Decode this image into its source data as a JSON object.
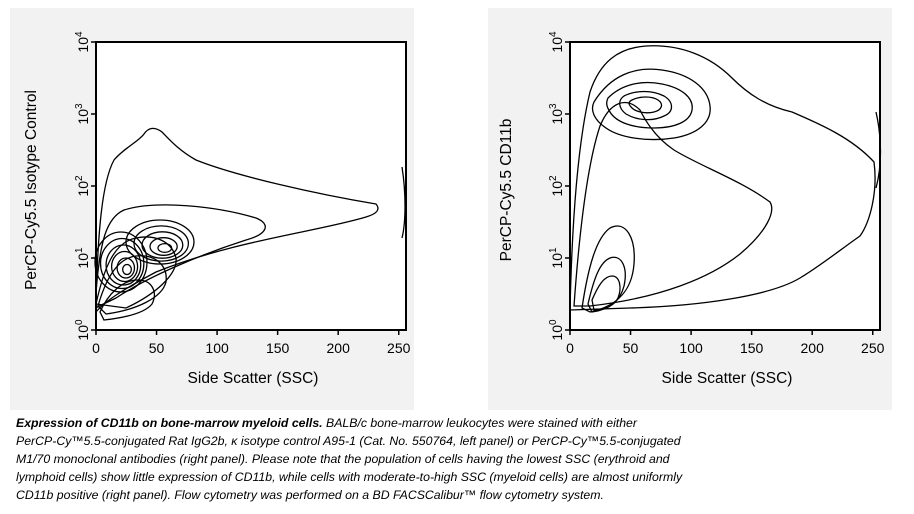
{
  "chart_data": [
    {
      "type": "contour",
      "xlabel": "Side Scatter (SSC)",
      "ylabel": "PerCP-Cy5.5 Isotype Control",
      "xlim": [
        0,
        256
      ],
      "ylim_log10": [
        0,
        4
      ],
      "x_ticks": [
        "0",
        "50",
        "100",
        "150",
        "200",
        "250"
      ],
      "y_ticks": [
        {
          "base": "10",
          "exp": "0"
        },
        {
          "base": "10",
          "exp": "1"
        },
        {
          "base": "10",
          "exp": "2"
        },
        {
          "base": "10",
          "exp": "3"
        },
        {
          "base": "10",
          "exp": "4"
        }
      ],
      "populations": [
        {
          "x": 20,
          "y": 8
        },
        {
          "x": 55,
          "y": 18
        }
      ]
    },
    {
      "type": "contour",
      "xlabel": "Side Scatter (SSC)",
      "ylabel": "PerCP-Cy5.5 CD11b",
      "xlim": [
        0,
        256
      ],
      "ylim_log10": [
        0,
        4
      ],
      "x_ticks": [
        "0",
        "50",
        "100",
        "150",
        "200",
        "250"
      ],
      "y_ticks": [
        {
          "base": "10",
          "exp": "0"
        },
        {
          "base": "10",
          "exp": "1"
        },
        {
          "base": "10",
          "exp": "2"
        },
        {
          "base": "10",
          "exp": "3"
        },
        {
          "base": "10",
          "exp": "4"
        }
      ],
      "populations": [
        {
          "x": 20,
          "y": 6
        },
        {
          "x": 58,
          "y": 1700
        }
      ]
    }
  ],
  "caption": {
    "title": "Expression of CD11b on bone-marrow myeloid cells.",
    "line1": " BALB/c bone-marrow leukocytes were stained with either",
    "line2": "PerCP-Cy™5.5-conjugated Rat IgG2b, κ isotype control A95-1 (Cat. No. 550764, left panel) or PerCP-Cy™5.5-conjugated",
    "line3": "M1/70 monoclonal antibodies (right panel). Please note that the population of cells having the lowest SSC (erythroid and",
    "line4": "lymphoid cells) show little expression of CD11b, while cells with moderate-to-high SSC (myeloid cells) are almost uniformly",
    "line5": "CD11b positive (right panel). Flow cytometry was performed on a BD FACSCalibur™ flow cytometry system."
  }
}
